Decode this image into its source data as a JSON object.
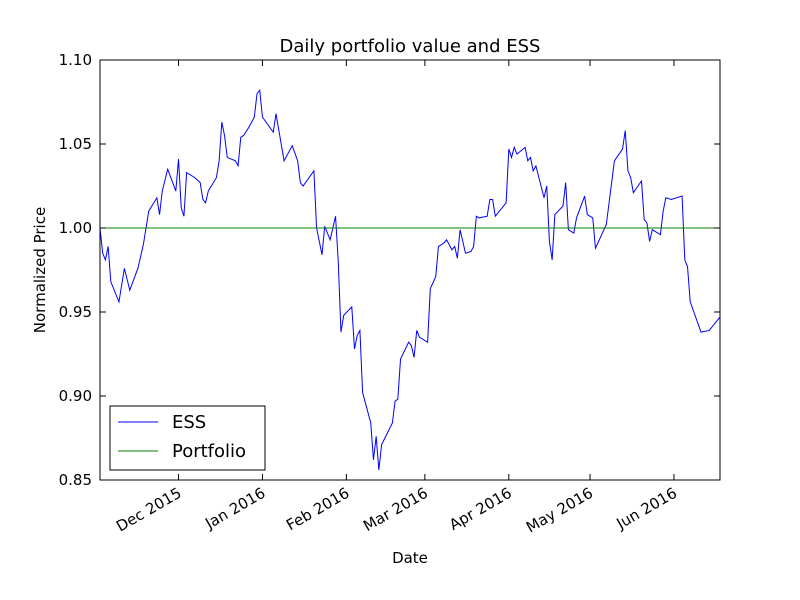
{
  "chart_data": {
    "type": "line",
    "title": "Daily portfolio value and ESS",
    "xlabel": "Date",
    "ylabel": "Normalized Price",
    "xlim": [
      0,
      229
    ],
    "ylim": [
      0.85,
      1.1
    ],
    "xticks": [
      {
        "value": 29,
        "label": "Dec 2015"
      },
      {
        "value": 60,
        "label": "Jan 2016"
      },
      {
        "value": 91,
        "label": "Feb 2016"
      },
      {
        "value": 120,
        "label": "Mar 2016"
      },
      {
        "value": 151,
        "label": "Apr 2016"
      },
      {
        "value": 181,
        "label": "May 2016"
      },
      {
        "value": 212,
        "label": "Jun 2016"
      }
    ],
    "yticks": [
      {
        "value": 0.85,
        "label": "0.85"
      },
      {
        "value": 0.9,
        "label": "0.90"
      },
      {
        "value": 0.95,
        "label": "0.95"
      },
      {
        "value": 1.0,
        "label": "1.00"
      },
      {
        "value": 1.05,
        "label": "1.05"
      },
      {
        "value": 1.1,
        "label": "1.10"
      }
    ],
    "legend": "lower left",
    "series": [
      {
        "name": "ESS",
        "color": "#0000ff",
        "x": [
          0,
          1,
          2,
          3,
          4,
          7,
          9,
          11,
          14,
          16,
          18,
          21,
          22,
          23,
          25,
          28,
          29,
          30,
          31,
          32,
          35,
          37,
          38,
          39,
          40,
          43,
          44,
          45,
          46,
          47,
          50,
          51,
          52,
          53,
          55,
          57,
          58,
          59,
          60,
          64,
          65,
          68,
          71,
          73,
          74,
          75,
          79,
          80,
          82,
          83,
          85,
          87,
          88,
          89,
          90,
          93,
          94,
          95,
          96,
          97,
          100,
          101,
          102,
          103,
          104,
          108,
          109,
          110,
          111,
          114,
          115,
          116,
          117,
          118,
          121,
          122,
          124,
          125,
          127,
          128,
          130,
          131,
          132,
          133,
          135,
          137,
          138,
          139,
          140,
          143,
          144,
          145,
          146,
          150,
          151,
          152,
          153,
          154,
          157,
          158,
          159,
          160,
          161,
          164,
          165,
          166,
          167,
          168,
          171,
          172,
          173,
          175,
          176,
          179,
          180,
          182,
          183,
          187,
          190,
          193,
          194,
          195,
          196,
          197,
          200,
          201,
          202,
          203,
          204,
          207,
          208,
          209,
          211,
          215,
          216,
          217,
          218,
          222,
          225,
          229
        ],
        "values": [
          1.0,
          0.985,
          0.981,
          0.989,
          0.968,
          0.956,
          0.976,
          0.963,
          0.976,
          0.99,
          1.01,
          1.018,
          1.008,
          1.022,
          1.035,
          1.022,
          1.041,
          1.012,
          1.007,
          1.033,
          1.03,
          1.027,
          1.017,
          1.015,
          1.022,
          1.03,
          1.04,
          1.063,
          1.055,
          1.042,
          1.04,
          1.037,
          1.054,
          1.055,
          1.06,
          1.066,
          1.08,
          1.082,
          1.066,
          1.057,
          1.068,
          1.04,
          1.049,
          1.04,
          1.027,
          1.025,
          1.034,
          1.0,
          0.984,
          1.001,
          0.993,
          1.007,
          0.98,
          0.938,
          0.948,
          0.953,
          0.928,
          0.936,
          0.939,
          0.902,
          0.884,
          0.862,
          0.876,
          0.856,
          0.871,
          0.884,
          0.897,
          0.898,
          0.922,
          0.932,
          0.93,
          0.923,
          0.939,
          0.935,
          0.932,
          0.964,
          0.971,
          0.989,
          0.991,
          0.993,
          0.987,
          0.989,
          0.982,
          0.999,
          0.985,
          0.986,
          0.989,
          1.007,
          1.006,
          1.007,
          1.017,
          1.017,
          1.007,
          1.015,
          1.047,
          1.042,
          1.048,
          1.044,
          1.048,
          1.04,
          1.042,
          1.034,
          1.037,
          1.018,
          1.025,
          0.992,
          0.981,
          1.008,
          1.013,
          1.027,
          0.999,
          0.997,
          1.006,
          1.019,
          1.008,
          1.006,
          0.988,
          1.002,
          1.04,
          1.047,
          1.058,
          1.034,
          1.03,
          1.021,
          1.028,
          1.005,
          1.003,
          0.992,
          0.999,
          0.996,
          1.01,
          1.018,
          1.017,
          1.019,
          0.981,
          0.977,
          0.956,
          0.938,
          0.939,
          0.947
        ]
      },
      {
        "name": "Portfolio",
        "color": "#008000",
        "x": [
          0,
          229
        ],
        "values": [
          1.0,
          1.0
        ]
      }
    ]
  }
}
